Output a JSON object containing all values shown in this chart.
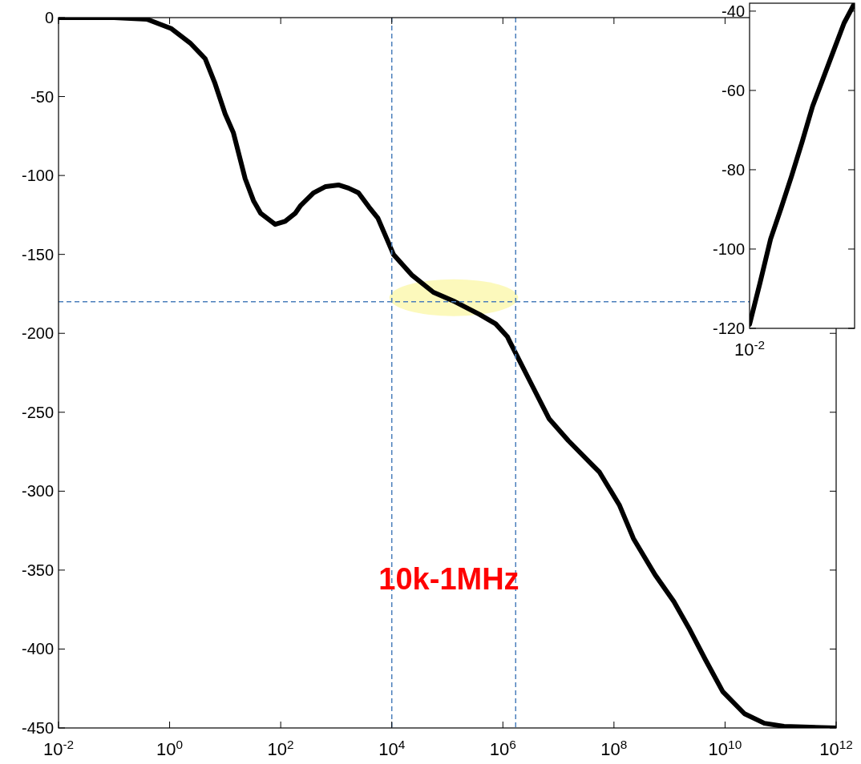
{
  "chart_data": [
    {
      "type": "line",
      "log": "x",
      "xlim": [
        0.01,
        1000000000000
      ],
      "ylim": [
        -450,
        0
      ],
      "xticks": [
        {
          "value": 0.01,
          "label": "10$^{-2}$"
        },
        {
          "value": 1,
          "label": "10$^{0}$"
        },
        {
          "value": 100,
          "label": "10$^{2}$"
        },
        {
          "value": 10000,
          "label": "10$^{4}$"
        },
        {
          "value": 1000000,
          "label": "10$^{6}$"
        },
        {
          "value": 100000000,
          "label": "10$^{8}$"
        },
        {
          "value": 10000000000,
          "label": "10$^{10}$"
        },
        {
          "value": 1000000000000,
          "label": "10$^{12}$"
        }
      ],
      "yticks": [
        -450,
        -400,
        -350,
        -300,
        -250,
        -200,
        -150,
        -100,
        -50,
        0
      ],
      "grid": false,
      "x": [
        0.01,
        0.1,
        0.39,
        1.08,
        2.33,
        4.37,
        6.46,
        10,
        14.1,
        22.9,
        32.4,
        43.7,
        79.4,
        120,
        182,
        229,
        389,
        646,
        1096,
        1660,
        2512,
        3890,
        5623,
        7244,
        10720,
        22900,
        56200,
        138000,
        380000,
        741000,
        1200000,
        1320000,
        3470000,
        6760000,
        15100000,
        39800000,
        55000000,
        126000000,
        224000000,
        550000000,
        1200000000,
        2340000000,
        4470000000,
        9100000000,
        22400000000,
        51000000000,
        115000000000,
        1000000000000
      ],
      "series": [
        {
          "color": "#000000",
          "values": [
            0,
            0,
            -1,
            -7,
            -16,
            -26,
            -41,
            -61,
            -73,
            -102,
            -116,
            -124,
            -131,
            -129,
            -124,
            -119,
            -111,
            -107,
            -106,
            -108,
            -111,
            -120,
            -127,
            -136,
            -150,
            -163,
            -174,
            -180,
            -188,
            -194,
            -202,
            -205,
            -234,
            -254,
            -268,
            -283,
            -288,
            -309,
            -330,
            -353,
            -370,
            -388,
            -407,
            -427,
            -441,
            -447,
            -449,
            -450
          ]
        }
      ],
      "ref_lines": [
        {
          "axis": "x",
          "value": 10000,
          "color": "#4a7ebb",
          "line_style": "dashed"
        },
        {
          "axis": "x",
          "value": 1700000,
          "color": "#4a7ebb",
          "line_style": "dashed"
        },
        {
          "axis": "y",
          "value": -180,
          "color": "#4a7ebb",
          "line_style": "dashed"
        }
      ],
      "annotations": [
        "10k-1MHz"
      ]
    },
    {
      "type": "line",
      "ylim": [
        -120,
        -38
      ],
      "categories": [
        null,
        null,
        null,
        null,
        null,
        null,
        null,
        null,
        null,
        null,
        null
      ],
      "yticks": [
        -120,
        -100,
        -80,
        -60,
        -40
      ],
      "grid": false,
      "annotations": [
        "10$^{-2}$"
      ],
      "series": [
        {
          "color": "#000000",
          "values": [
            -119,
            -108.5,
            -97.5,
            -89.7,
            -81.6,
            -73,
            -64,
            -57,
            -50,
            -43,
            -38
          ]
        }
      ]
    }
  ]
}
